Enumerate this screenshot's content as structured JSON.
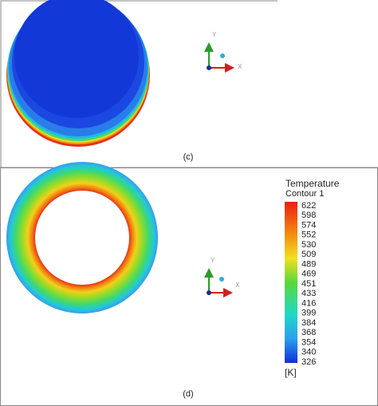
{
  "panel_c": {
    "label": "(c)",
    "axis_y": "Y",
    "axis_x": "X"
  },
  "panel_d": {
    "label": "(d)",
    "axis_y": "Y",
    "axis_x": "X"
  },
  "legend": {
    "title": "Temperature",
    "subtitle": "Contour 1",
    "ticks": [
      622,
      598,
      574,
      552,
      530,
      509,
      489,
      469,
      451,
      433,
      416,
      399,
      384,
      368,
      354,
      340,
      326
    ],
    "unit": "[K]"
  }
}
